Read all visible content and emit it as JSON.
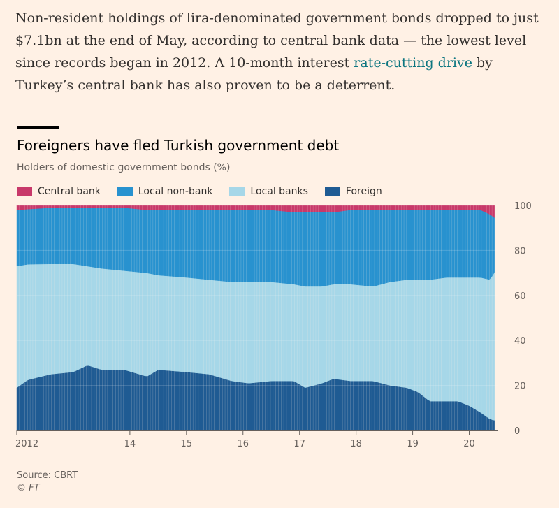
{
  "article": {
    "text_before_link": "Non-resident holdings of lira-denominated government bonds dropped to just $7.1bn at the end of May, according to central bank data — the lowest level since records began in 2012. A 10-month interest ",
    "link_text": "rate-cutting drive",
    "text_after_link": " by Turkey’s central bank has also proven to be a deterrent."
  },
  "footer": {
    "source": "Source: CBRT",
    "copyright": "© FT"
  },
  "chart_data": {
    "type": "area",
    "stacked": true,
    "title": "Foreigners have fled Turkish government debt",
    "subtitle": "Holders of domestic government bonds (%)",
    "ylim": [
      0,
      100
    ],
    "yticks": [
      0,
      20,
      40,
      60,
      80,
      100
    ],
    "y_axis_side": "right",
    "grid": true,
    "legend_position": "top-left",
    "x_tick_labels": [
      {
        "label": "2012",
        "x": 2012.0
      },
      {
        "label": "14",
        "x": 2014.0
      },
      {
        "label": "15",
        "x": 2015.0
      },
      {
        "label": "16",
        "x": 2016.0
      },
      {
        "label": "17",
        "x": 2017.0
      },
      {
        "label": "18",
        "x": 2018.0
      },
      {
        "label": "19",
        "x": 2019.0
      },
      {
        "label": "20",
        "x": 2020.0
      }
    ],
    "xlim": [
      2012.0,
      2020.5
    ],
    "series": [
      {
        "name": "Foreign",
        "color": "#1f5b93",
        "points": [
          [
            2012.0,
            19
          ],
          [
            2012.2,
            23
          ],
          [
            2012.6,
            25
          ],
          [
            2013.0,
            26
          ],
          [
            2013.25,
            29
          ],
          [
            2013.5,
            27
          ],
          [
            2013.9,
            27
          ],
          [
            2014.3,
            24
          ],
          [
            2014.5,
            27
          ],
          [
            2015.0,
            26
          ],
          [
            2015.4,
            25
          ],
          [
            2015.8,
            22
          ],
          [
            2016.1,
            21
          ],
          [
            2016.5,
            22
          ],
          [
            2016.9,
            22
          ],
          [
            2017.1,
            19
          ],
          [
            2017.4,
            21
          ],
          [
            2017.6,
            23
          ],
          [
            2017.9,
            22
          ],
          [
            2018.3,
            22
          ],
          [
            2018.6,
            20
          ],
          [
            2018.9,
            19
          ],
          [
            2019.1,
            17
          ],
          [
            2019.3,
            13
          ],
          [
            2019.6,
            13
          ],
          [
            2019.8,
            13
          ],
          [
            2020.0,
            11
          ],
          [
            2020.2,
            8
          ],
          [
            2020.37,
            5
          ],
          [
            2020.45,
            4.5
          ]
        ]
      },
      {
        "name": "Local banks",
        "color": "#a6d7e8",
        "points": [
          [
            2012.0,
            54
          ],
          [
            2012.6,
            49
          ],
          [
            2013.0,
            48
          ],
          [
            2013.25,
            44
          ],
          [
            2013.5,
            45
          ],
          [
            2013.9,
            44
          ],
          [
            2014.3,
            46
          ],
          [
            2014.5,
            42
          ],
          [
            2015.0,
            42
          ],
          [
            2015.4,
            42
          ],
          [
            2015.8,
            44
          ],
          [
            2016.1,
            45
          ],
          [
            2016.5,
            44
          ],
          [
            2016.9,
            43
          ],
          [
            2017.1,
            45
          ],
          [
            2017.4,
            43
          ],
          [
            2017.6,
            42
          ],
          [
            2017.9,
            43
          ],
          [
            2018.3,
            42
          ],
          [
            2018.6,
            46
          ],
          [
            2018.9,
            48
          ],
          [
            2019.1,
            50
          ],
          [
            2019.3,
            54
          ],
          [
            2019.6,
            55
          ],
          [
            2019.8,
            55
          ],
          [
            2020.0,
            57
          ],
          [
            2020.2,
            60
          ],
          [
            2020.37,
            62
          ],
          [
            2020.45,
            66
          ]
        ]
      },
      {
        "name": "Local non-bank",
        "color": "#2892cf",
        "points": [
          [
            2012.0,
            25
          ],
          [
            2012.6,
            25
          ],
          [
            2013.0,
            25
          ],
          [
            2013.25,
            26
          ],
          [
            2013.5,
            27
          ],
          [
            2013.9,
            28
          ],
          [
            2014.3,
            28
          ],
          [
            2014.5,
            29
          ],
          [
            2015.0,
            30
          ],
          [
            2015.4,
            31
          ],
          [
            2015.8,
            32
          ],
          [
            2016.1,
            32
          ],
          [
            2016.5,
            32
          ],
          [
            2016.9,
            32
          ],
          [
            2017.1,
            33
          ],
          [
            2017.4,
            33
          ],
          [
            2017.6,
            32
          ],
          [
            2017.9,
            33
          ],
          [
            2018.3,
            34
          ],
          [
            2018.6,
            32
          ],
          [
            2018.9,
            31
          ],
          [
            2019.1,
            31
          ],
          [
            2019.3,
            31
          ],
          [
            2019.6,
            30
          ],
          [
            2019.8,
            30
          ],
          [
            2020.0,
            30
          ],
          [
            2020.2,
            30
          ],
          [
            2020.37,
            29
          ],
          [
            2020.45,
            24
          ]
        ]
      },
      {
        "name": "Central bank",
        "color": "#c8396a",
        "points": [
          [
            2012.0,
            2
          ],
          [
            2012.6,
            1
          ],
          [
            2013.0,
            1
          ],
          [
            2013.25,
            1
          ],
          [
            2013.5,
            1
          ],
          [
            2013.9,
            1
          ],
          [
            2014.3,
            2
          ],
          [
            2014.5,
            2
          ],
          [
            2015.0,
            2
          ],
          [
            2015.4,
            2
          ],
          [
            2015.8,
            2
          ],
          [
            2016.1,
            2
          ],
          [
            2016.5,
            2
          ],
          [
            2016.9,
            3
          ],
          [
            2017.1,
            3
          ],
          [
            2017.4,
            3
          ],
          [
            2017.6,
            3
          ],
          [
            2017.9,
            2
          ],
          [
            2018.3,
            2
          ],
          [
            2018.6,
            2
          ],
          [
            2018.9,
            2
          ],
          [
            2019.1,
            2
          ],
          [
            2019.3,
            2
          ],
          [
            2019.6,
            2
          ],
          [
            2019.8,
            2
          ],
          [
            2020.0,
            2
          ],
          [
            2020.2,
            2
          ],
          [
            2020.37,
            4
          ],
          [
            2020.45,
            5.5
          ]
        ]
      }
    ]
  }
}
